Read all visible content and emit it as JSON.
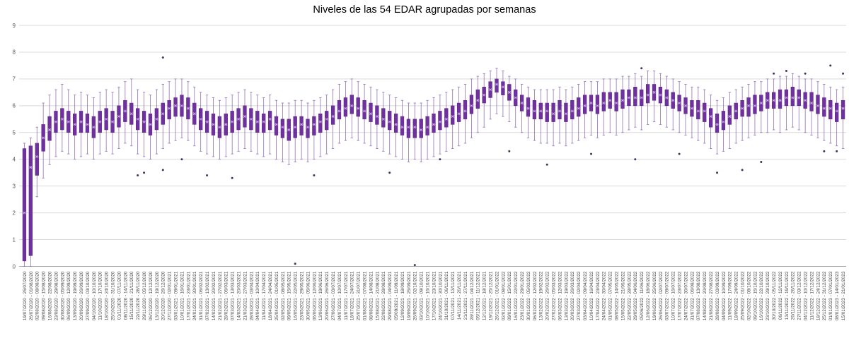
{
  "chart_data": {
    "type": "box",
    "title": "Niveles de las 54 EDAR agrupadas por semanas",
    "ylim": [
      0,
      9
    ],
    "yticks": [
      0,
      1,
      2,
      3,
      4,
      5,
      6,
      7,
      8,
      9
    ],
    "grid": true,
    "legend": "none",
    "colors": {
      "box_fill": "#7030a0",
      "box_stroke": "#5b2387",
      "whisker": "#9272b4",
      "median": "#9b6cc8",
      "mean_marker": "#cdb8e2",
      "outlier": "#46325e",
      "gridline": "#d9d9d9",
      "axis": "#a6a6a6",
      "tick_text": "#595959",
      "label_text": "#404040"
    },
    "weeks": [
      "19/07/2020 - 25/07/2020",
      "26/07/2020 - 01/08/2020",
      "02/08/2020 - 08/08/2020",
      "09/08/2020 - 15/08/2020",
      "16/08/2020 - 22/08/2020",
      "23/08/2020 - 29/08/2020",
      "30/08/2020 - 05/09/2020",
      "06/09/2020 - 12/09/2020",
      "13/09/2020 - 19/09/2020",
      "20/09/2020 - 26/09/2020",
      "27/09/2020 - 03/10/2020",
      "04/10/2020 - 10/10/2020",
      "11/10/2020 - 17/10/2020",
      "18/10/2020 - 24/10/2020",
      "25/10/2020 - 31/10/2020",
      "01/11/2020 - 07/11/2020",
      "08/11/2020 - 14/11/2020",
      "15/11/2020 - 21/11/2020",
      "22/11/2020 - 28/11/2020",
      "29/11/2020 - 05/12/2020",
      "06/12/2020 - 12/12/2020",
      "13/12/2020 - 19/12/2020",
      "20/12/2020 - 26/12/2020",
      "27/12/2020 - 02/01/2021",
      "03/01/2021 - 09/01/2021",
      "10/01/2021 - 16/01/2021",
      "17/01/2021 - 23/01/2021",
      "24/01/2021 - 30/01/2021",
      "31/01/2021 - 06/02/2021",
      "07/02/2021 - 13/02/2021",
      "14/02/2021 - 20/02/2021",
      "21/02/2021 - 27/02/2021",
      "28/02/2021 - 06/03/2021",
      "07/03/2021 - 13/03/2021",
      "14/03/2021 - 20/03/2021",
      "21/03/2021 - 27/03/2021",
      "28/03/2021 - 03/04/2021",
      "04/04/2021 - 10/04/2021",
      "11/04/2021 - 17/04/2021",
      "18/04/2021 - 24/04/2021",
      "25/04/2021 - 01/05/2021",
      "02/05/2021 - 08/05/2021",
      "09/05/2021 - 15/05/2021",
      "16/05/2021 - 22/05/2021",
      "23/05/2021 - 29/05/2021",
      "30/05/2021 - 05/06/2021",
      "06/06/2021 - 12/06/2021",
      "13/06/2021 - 19/06/2021",
      "20/06/2021 - 26/06/2021",
      "27/06/2021 - 03/07/2021",
      "04/07/2021 - 10/07/2021",
      "11/07/2021 - 17/07/2021",
      "18/07/2021 - 24/07/2021",
      "25/07/2021 - 31/07/2021",
      "01/08/2021 - 07/08/2021",
      "08/08/2021 - 14/08/2021",
      "15/08/2021 - 21/08/2021",
      "22/08/2021 - 28/08/2021",
      "29/08/2021 - 04/09/2021",
      "05/09/2021 - 11/09/2021",
      "12/09/2021 - 18/09/2021",
      "19/09/2021 - 25/09/2021",
      "26/09/2021 - 02/10/2021",
      "03/10/2021 - 09/10/2021",
      "10/10/2021 - 16/10/2021",
      "17/10/2021 - 23/10/2021",
      "24/10/2021 - 30/10/2021",
      "31/10/2021 - 06/11/2021",
      "07/11/2021 - 13/11/2021",
      "14/11/2021 - 20/11/2021",
      "21/11/2021 - 27/11/2021",
      "28/11/2021 - 04/12/2021",
      "05/12/2021 - 11/12/2021",
      "12/12/2021 - 18/12/2021",
      "19/12/2021 - 25/12/2021",
      "26/12/2021 - 01/01/2022",
      "02/01/2022 - 08/01/2022",
      "09/01/2022 - 15/01/2022",
      "16/01/2022 - 22/01/2022",
      "23/01/2022 - 29/01/2022",
      "30/01/2022 - 05/02/2022",
      "06/02/2022 - 12/02/2022",
      "13/02/2022 - 19/02/2022",
      "20/02/2022 - 26/02/2022",
      "27/02/2022 - 05/03/2022",
      "06/03/2022 - 12/03/2022",
      "13/03/2022 - 19/03/2022",
      "20/03/2022 - 26/03/2022",
      "27/03/2022 - 02/04/2022",
      "03/04/2022 - 09/04/2022",
      "10/04/2022 - 16/04/2022",
      "17/04/2022 - 23/04/2022",
      "24/04/2022 - 30/04/2022",
      "01/05/2022 - 07/05/2022",
      "08/05/2022 - 14/05/2022",
      "15/05/2022 - 21/05/2022",
      "22/05/2022 - 28/05/2022",
      "29/05/2022 - 04/06/2022",
      "05/06/2022 - 11/06/2022",
      "12/06/2022 - 18/06/2022",
      "19/06/2022 - 25/06/2022",
      "26/06/2022 - 02/07/2022",
      "03/07/2022 - 09/07/2022",
      "10/07/2022 - 16/07/2022",
      "17/07/2022 - 23/07/2022",
      "24/07/2022 - 30/07/2022",
      "31/07/2022 - 06/08/2022",
      "07/08/2022 - 13/08/2022",
      "14/08/2022 - 20/08/2022",
      "21/08/2022 - 27/08/2022",
      "28/08/2022 - 03/09/2022",
      "04/09/2022 - 10/09/2022",
      "11/09/2022 - 17/09/2022",
      "18/09/2022 - 24/09/2022",
      "25/09/2022 - 01/10/2022",
      "02/10/2022 - 08/10/2022",
      "09/10/2022 - 15/10/2022",
      "16/10/2022 - 22/10/2022",
      "23/10/2022 - 29/10/2022",
      "30/10/2022 - 05/11/2022",
      "06/11/2022 - 12/11/2022",
      "13/11/2022 - 19/11/2022",
      "20/11/2022 - 26/11/2022",
      "27/11/2022 - 03/12/2022",
      "04/12/2022 - 10/12/2022",
      "11/12/2022 - 17/12/2022",
      "18/12/2022 - 24/12/2022",
      "25/12/2022 - 31/12/2022",
      "01/01/2023 - 07/01/2023",
      "08/01/2023 - 14/01/2023",
      "15/01/2023 - 21/01/2023"
    ],
    "boxes": [
      [
        0,
        0.2,
        2,
        4.4,
        4.6
      ],
      [
        0,
        0.4,
        3.7,
        4.5,
        4.8
      ],
      [
        2.6,
        3.4,
        4.1,
        4.6,
        5.2
      ],
      [
        3.3,
        4.3,
        4.8,
        5.3,
        6.1
      ],
      [
        3.8,
        4.7,
        5.1,
        5.6,
        6.4
      ],
      [
        4.1,
        5,
        5.4,
        5.8,
        6.6
      ],
      [
        4.3,
        5.1,
        5.5,
        5.9,
        6.8
      ],
      [
        4.2,
        5,
        5.4,
        5.8,
        6.6
      ],
      [
        4,
        4.9,
        5.3,
        5.7,
        6.4
      ],
      [
        4.1,
        5,
        5.4,
        5.8,
        6.5
      ],
      [
        4.2,
        5,
        5.3,
        5.7,
        6.4
      ],
      [
        4,
        4.8,
        5.2,
        5.6,
        6.3
      ],
      [
        4.2,
        5,
        5.4,
        5.8,
        6.5
      ],
      [
        4.3,
        5.1,
        5.5,
        5.9,
        6.6
      ],
      [
        4.2,
        5,
        5.4,
        5.8,
        6.5
      ],
      [
        4.4,
        5.2,
        5.6,
        6,
        6.7
      ],
      [
        4.6,
        5.4,
        5.8,
        6.2,
        6.9
      ],
      [
        4.5,
        5.3,
        5.7,
        6.1,
        7
      ],
      [
        4.2,
        5.1,
        5.5,
        5.9,
        6.6
      ],
      [
        4.1,
        5,
        5.4,
        5.8,
        6.5
      ],
      [
        4,
        4.9,
        5.3,
        5.7,
        6.4
      ],
      [
        4.2,
        5.1,
        5.5,
        5.9,
        6.6
      ],
      [
        4.4,
        5.3,
        5.7,
        6.1,
        6.8
      ],
      [
        4.6,
        5.5,
        5.9,
        6.2,
        6.9
      ],
      [
        4.7,
        5.6,
        6,
        6.3,
        7
      ],
      [
        4.8,
        5.6,
        6,
        6.4,
        7
      ],
      [
        4.7,
        5.5,
        5.9,
        6.3,
        6.9
      ],
      [
        4.5,
        5.3,
        5.7,
        6.1,
        6.7
      ],
      [
        4.3,
        5.1,
        5.5,
        5.9,
        6.5
      ],
      [
        4.2,
        5,
        5.4,
        5.8,
        6.4
      ],
      [
        4.1,
        4.9,
        5.3,
        5.7,
        6.3
      ],
      [
        4,
        4.8,
        5.2,
        5.6,
        6.2
      ],
      [
        4.1,
        4.9,
        5.3,
        5.7,
        6.3
      ],
      [
        4.2,
        5,
        5.4,
        5.8,
        6.4
      ],
      [
        4.3,
        5.1,
        5.5,
        5.9,
        6.5
      ],
      [
        4.4,
        5.2,
        5.6,
        6,
        6.6
      ],
      [
        4.3,
        5.1,
        5.5,
        5.9,
        6.5
      ],
      [
        4.2,
        5,
        5.4,
        5.8,
        6.4
      ],
      [
        4.1,
        5,
        5.4,
        5.7,
        6.3
      ],
      [
        4.2,
        5.1,
        5.5,
        5.8,
        6.4
      ],
      [
        4,
        4.9,
        5.3,
        5.6,
        6.2
      ],
      [
        3.9,
        4.8,
        5.2,
        5.5,
        6.1
      ],
      [
        3.8,
        4.7,
        5.1,
        5.5,
        6.1
      ],
      [
        3.9,
        4.8,
        5.2,
        5.6,
        6.2
      ],
      [
        4,
        4.9,
        5.3,
        5.6,
        6.2
      ],
      [
        3.9,
        4.8,
        5.2,
        5.5,
        6.1
      ],
      [
        4,
        4.9,
        5.3,
        5.6,
        6.2
      ],
      [
        4.1,
        5,
        5.4,
        5.7,
        6.3
      ],
      [
        4.2,
        5.1,
        5.5,
        5.8,
        6.4
      ],
      [
        4.4,
        5.3,
        5.6,
        6,
        6.6
      ],
      [
        4.6,
        5.5,
        5.8,
        6.2,
        6.8
      ],
      [
        4.7,
        5.6,
        5.9,
        6.3,
        6.9
      ],
      [
        4.8,
        5.7,
        6,
        6.4,
        7
      ],
      [
        4.7,
        5.6,
        5.9,
        6.3,
        6.9
      ],
      [
        4.6,
        5.5,
        5.8,
        6.2,
        6.8
      ],
      [
        4.5,
        5.4,
        5.7,
        6.1,
        6.7
      ],
      [
        4.4,
        5.3,
        5.6,
        6,
        6.6
      ],
      [
        4.3,
        5.2,
        5.5,
        5.9,
        6.5
      ],
      [
        4.2,
        5.1,
        5.4,
        5.8,
        6.4
      ],
      [
        4.1,
        5,
        5.3,
        5.7,
        6.3
      ],
      [
        4,
        4.9,
        5.2,
        5.6,
        6.2
      ],
      [
        3.9,
        4.8,
        5.2,
        5.5,
        6.1
      ],
      [
        4,
        4.8,
        5.2,
        5.5,
        6.1
      ],
      [
        3.9,
        4.8,
        5.1,
        5.5,
        6.1
      ],
      [
        4,
        4.9,
        5.2,
        5.6,
        6.2
      ],
      [
        4.1,
        5,
        5.3,
        5.7,
        6.3
      ],
      [
        4.2,
        5.1,
        5.4,
        5.8,
        6.4
      ],
      [
        4.3,
        5.2,
        5.5,
        5.9,
        6.5
      ],
      [
        4.4,
        5.3,
        5.6,
        6,
        6.6
      ],
      [
        4.5,
        5.4,
        5.7,
        6.1,
        6.7
      ],
      [
        4.6,
        5.5,
        5.8,
        6.2,
        6.8
      ],
      [
        4.8,
        5.7,
        6,
        6.4,
        7
      ],
      [
        5,
        5.9,
        6.2,
        6.6,
        7.1
      ],
      [
        5.2,
        6.1,
        6.4,
        6.7,
        7.2
      ],
      [
        5.5,
        6.3,
        6.6,
        6.9,
        7.3
      ],
      [
        5.7,
        6.5,
        6.8,
        7,
        7.4
      ],
      [
        5.6,
        6.4,
        6.7,
        6.9,
        7.3
      ],
      [
        5.4,
        6.2,
        6.5,
        6.8,
        7.1
      ],
      [
        5.2,
        6,
        6.3,
        6.6,
        7
      ],
      [
        5,
        5.8,
        6.1,
        6.4,
        6.8
      ],
      [
        4.8,
        5.6,
        5.9,
        6.3,
        6.7
      ],
      [
        4.7,
        5.5,
        5.8,
        6.2,
        6.6
      ],
      [
        4.6,
        5.5,
        5.8,
        6.1,
        6.6
      ],
      [
        4.6,
        5.4,
        5.8,
        6.1,
        6.6
      ],
      [
        4.5,
        5.4,
        5.7,
        6.1,
        6.6
      ],
      [
        4.6,
        5.5,
        5.8,
        6.2,
        6.7
      ],
      [
        4.5,
        5.4,
        5.7,
        6.1,
        6.6
      ],
      [
        4.6,
        5.5,
        5.8,
        6.2,
        6.7
      ],
      [
        4.7,
        5.6,
        5.9,
        6.3,
        6.8
      ],
      [
        4.8,
        5.7,
        6,
        6.4,
        6.9
      ],
      [
        4.9,
        5.8,
        6.1,
        6.4,
        6.9
      ],
      [
        4.8,
        5.7,
        6,
        6.4,
        6.9
      ],
      [
        4.9,
        5.8,
        6.1,
        6.5,
        7
      ],
      [
        5,
        5.9,
        6.2,
        6.5,
        7
      ],
      [
        4.9,
        5.8,
        6.1,
        6.5,
        7
      ],
      [
        5,
        5.9,
        6.2,
        6.6,
        7.1
      ],
      [
        5.1,
        6,
        6.3,
        6.6,
        7.1
      ],
      [
        5.2,
        6,
        6.3,
        6.7,
        7.2
      ],
      [
        5.1,
        6,
        6.3,
        6.6,
        7.1
      ],
      [
        5.3,
        6.1,
        6.4,
        6.8,
        7.3
      ],
      [
        5.4,
        6.2,
        6.5,
        6.8,
        7.3
      ],
      [
        5.3,
        6.1,
        6.4,
        6.7,
        7.2
      ],
      [
        5.2,
        6,
        6.3,
        6.6,
        7.1
      ],
      [
        5.1,
        5.9,
        6.2,
        6.5,
        7
      ],
      [
        5,
        5.8,
        6.1,
        6.4,
        6.9
      ],
      [
        4.9,
        5.7,
        6,
        6.3,
        6.8
      ],
      [
        4.8,
        5.6,
        5.9,
        6.2,
        6.7
      ],
      [
        4.7,
        5.5,
        5.8,
        6.2,
        6.7
      ],
      [
        4.6,
        5.4,
        5.8,
        6.1,
        6.6
      ],
      [
        4.4,
        5.2,
        5.6,
        5.9,
        6.4
      ],
      [
        4.2,
        5,
        5.3,
        5.7,
        6.2
      ],
      [
        4.3,
        5.1,
        5.4,
        5.8,
        6.3
      ],
      [
        4.4,
        5.3,
        5.6,
        6,
        6.5
      ],
      [
        4.6,
        5.5,
        5.8,
        6.1,
        6.6
      ],
      [
        4.7,
        5.6,
        5.9,
        6.2,
        6.7
      ],
      [
        4.8,
        5.6,
        6,
        6.3,
        6.8
      ],
      [
        4.9,
        5.7,
        6,
        6.4,
        6.9
      ],
      [
        5,
        5.8,
        6.1,
        6.4,
        6.9
      ],
      [
        5,
        5.9,
        6.2,
        6.5,
        7
      ],
      [
        5.1,
        5.9,
        6.2,
        6.5,
        7
      ],
      [
        5,
        5.9,
        6.2,
        6.6,
        7.1
      ],
      [
        5.1,
        6,
        6.3,
        6.6,
        7.1
      ],
      [
        5.2,
        6,
        6.3,
        6.7,
        7.2
      ],
      [
        5.1,
        6,
        6.3,
        6.6,
        7.1
      ],
      [
        5,
        5.9,
        6.2,
        6.5,
        7
      ],
      [
        4.9,
        5.8,
        6.1,
        6.5,
        7
      ],
      [
        4.8,
        5.7,
        6,
        6.4,
        6.9
      ],
      [
        4.7,
        5.6,
        5.9,
        6.3,
        6.8
      ],
      [
        4.6,
        5.5,
        5.9,
        6.2,
        6.7
      ],
      [
        4.5,
        5.4,
        5.8,
        6.1,
        6.6
      ],
      [
        4.4,
        5.5,
        5.9,
        6.2,
        6.7
      ]
    ],
    "outliers": [
      [
        18,
        3.4
      ],
      [
        19,
        3.5
      ],
      [
        22,
        7.8
      ],
      [
        22,
        3.6
      ],
      [
        25,
        4
      ],
      [
        29,
        3.4
      ],
      [
        33,
        3.3
      ],
      [
        43,
        0.1
      ],
      [
        46,
        3.4
      ],
      [
        58,
        3.5
      ],
      [
        62,
        0.05
      ],
      [
        66,
        4
      ],
      [
        77,
        4.3
      ],
      [
        83,
        3.8
      ],
      [
        90,
        4.2
      ],
      [
        97,
        4
      ],
      [
        98,
        7.4
      ],
      [
        104,
        4.2
      ],
      [
        110,
        3.5
      ],
      [
        114,
        3.6
      ],
      [
        117,
        3.9
      ],
      [
        119,
        7.2
      ],
      [
        121,
        7.3
      ],
      [
        124,
        7.2
      ],
      [
        127,
        4.3
      ],
      [
        128,
        7.5
      ],
      [
        129,
        4.3
      ],
      [
        130,
        7.2
      ]
    ]
  }
}
